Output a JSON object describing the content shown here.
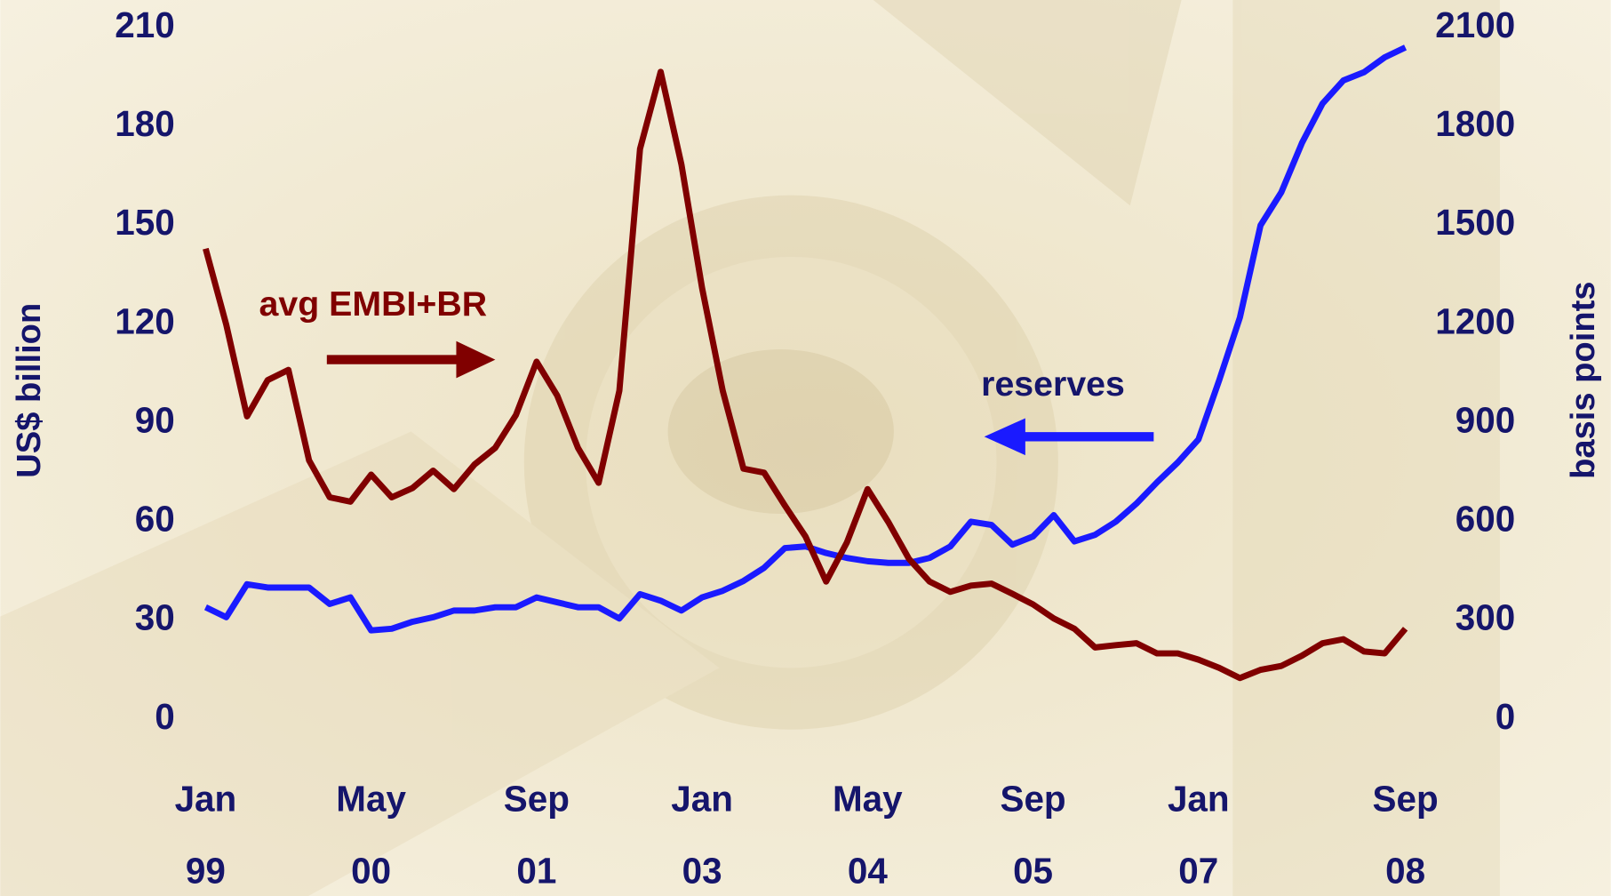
{
  "chart_data": {
    "type": "line",
    "x": [
      "1999-01",
      "1999-03",
      "1999-05",
      "1999-07",
      "1999-09",
      "1999-11",
      "2000-01",
      "2000-03",
      "2000-05",
      "2000-07",
      "2000-09",
      "2000-11",
      "2001-01",
      "2001-03",
      "2001-05",
      "2001-07",
      "2001-09",
      "2001-11",
      "2002-01",
      "2002-03",
      "2002-05",
      "2002-07",
      "2002-09",
      "2002-11",
      "2003-01",
      "2003-03",
      "2003-05",
      "2003-07",
      "2003-09",
      "2003-11",
      "2004-01",
      "2004-03",
      "2004-05",
      "2004-07",
      "2004-09",
      "2004-11",
      "2005-01",
      "2005-03",
      "2005-05",
      "2005-07",
      "2005-09",
      "2005-11",
      "2006-01",
      "2006-03",
      "2006-05",
      "2006-07",
      "2006-09",
      "2006-11",
      "2007-01",
      "2007-03",
      "2007-05",
      "2007-07",
      "2007-09",
      "2007-11",
      "2008-01",
      "2008-03",
      "2008-05",
      "2008-07",
      "2008-09"
    ],
    "xlim": [
      "1999-01",
      "2008-09"
    ],
    "xticks": [
      {
        "value": "1999-01",
        "label": [
          "Jan",
          "99"
        ]
      },
      {
        "value": "2000-05",
        "label": [
          "May",
          "00"
        ]
      },
      {
        "value": "2001-09",
        "label": [
          "Sep",
          "01"
        ]
      },
      {
        "value": "2003-01",
        "label": [
          "Jan",
          "03"
        ]
      },
      {
        "value": "2004-05",
        "label": [
          "May",
          "04"
        ]
      },
      {
        "value": "2005-09",
        "label": [
          "Sep",
          "05"
        ]
      },
      {
        "value": "2007-01",
        "label": [
          "Jan",
          "07"
        ]
      },
      {
        "value": "2008-09",
        "label": [
          "Sep",
          "08"
        ]
      }
    ],
    "ylabel": "US$ billion",
    "ylim": [
      0,
      210
    ],
    "yticks": [
      0,
      30,
      60,
      90,
      120,
      150,
      180,
      210
    ],
    "y2label": "basis points",
    "y2lim": [
      0,
      2100
    ],
    "y2ticks": [
      0,
      300,
      600,
      900,
      1200,
      1500,
      1800,
      2100
    ],
    "series": [
      {
        "name": "reserves",
        "color": "#1a1aff",
        "axis": "y",
        "values": [
          34,
          31,
          41,
          40,
          40,
          40,
          35,
          37,
          27,
          27.5,
          29.6,
          31,
          33,
          33,
          34,
          34,
          37,
          35.5,
          34,
          34,
          30.6,
          38,
          36,
          33,
          37,
          39,
          42,
          46,
          52,
          52.5,
          50.5,
          49,
          48,
          47.5,
          47.5,
          49,
          52.5,
          60,
          59,
          53,
          55.5,
          62,
          54,
          56,
          60,
          65.5,
          72,
          78,
          85,
          103,
          122,
          150,
          160,
          175,
          187,
          194,
          196.5,
          201,
          204
        ]
      },
      {
        "name": "avg EMBI+BR",
        "color": "#800000",
        "axis": "y2",
        "values": [
          1429,
          1198,
          920,
          1030,
          1061,
          786,
          674,
          661,
          743,
          674,
          702,
          755,
          699,
          774,
          824,
          924,
          1086,
          983,
          824,
          718,
          998,
          1732,
          1966,
          1685,
          1310,
          998,
          761,
          749,
          649,
          555,
          418,
          537,
          699,
          599,
          487,
          418,
          387,
          406,
          412,
          381,
          349,
          306,
          275,
          218,
          225,
          231,
          200,
          200,
          181,
          156,
          125,
          150,
          162,
          193,
          231,
          243,
          206,
          200,
          275
        ]
      }
    ]
  }
}
